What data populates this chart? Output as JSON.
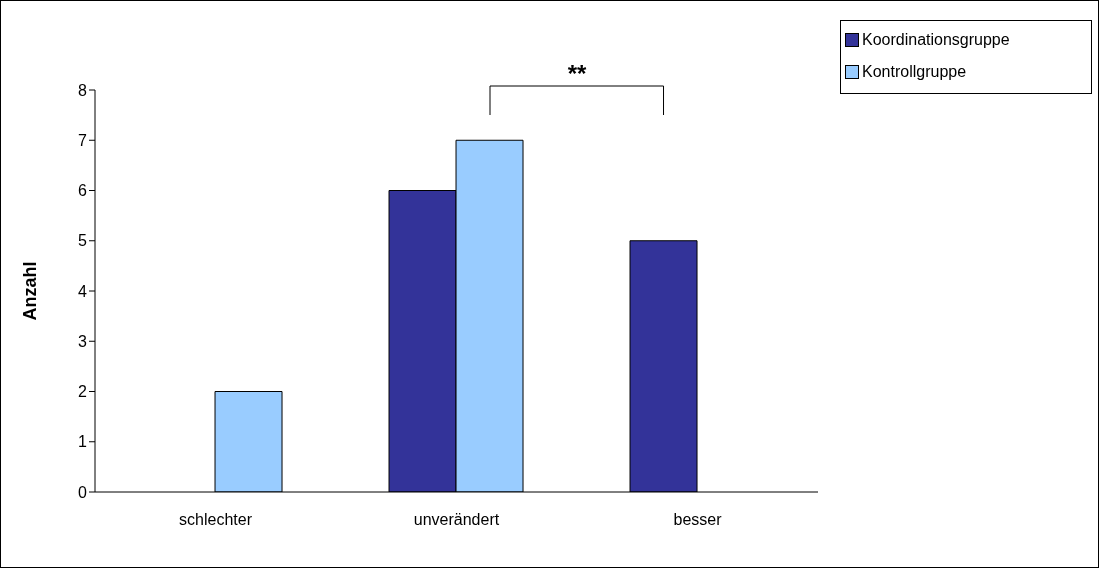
{
  "chart_data": {
    "type": "bar",
    "ylabel": "Anzahl",
    "categories": [
      "schlechter",
      "unverändert",
      "besser"
    ],
    "series": [
      {
        "name": "Koordinationsgruppe",
        "color": "#333399",
        "values": [
          0,
          6,
          5
        ]
      },
      {
        "name": "Kontrollgruppe",
        "color": "#99ccff",
        "values": [
          2,
          7,
          0
        ]
      }
    ],
    "ylim": [
      0,
      8
    ],
    "yticks": [
      0,
      1,
      2,
      3,
      4,
      5,
      6,
      7,
      8
    ],
    "grid": false,
    "legend": "top right",
    "annotations": [
      "**"
    ]
  }
}
